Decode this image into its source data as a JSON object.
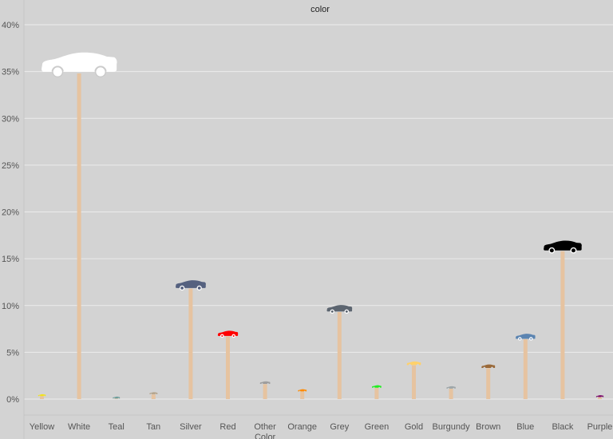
{
  "chart_data": {
    "type": "lollipop",
    "title": "color",
    "ylim": [
      0,
      40
    ],
    "y_ticks": [
      "0%",
      "5%",
      "10%",
      "15%",
      "20%",
      "25%",
      "30%",
      "35%",
      "40%"
    ],
    "y_tick_values": [
      0,
      5,
      10,
      15,
      20,
      25,
      30,
      35,
      40
    ],
    "grid": true,
    "categories": [
      "Yellow",
      "White",
      "Teal",
      "Tan",
      "Silver",
      "Red",
      "Other Color",
      "Orange",
      "Grey",
      "Green",
      "Gold",
      "Burgundy",
      "Brown",
      "Blue",
      "Black",
      "Purple"
    ],
    "values": [
      0.3,
      34.8,
      0.05,
      0.5,
      11.8,
      6.7,
      1.6,
      0.8,
      9.3,
      1.2,
      3.6,
      1.1,
      3.3,
      6.4,
      15.8,
      0.2
    ],
    "colors": [
      "#f2e21a",
      "#ffffff",
      "#6c9d9a",
      "#b3a38a",
      "#55617f",
      "#ff0000",
      "#9e9e9e",
      "#ff8a00",
      "#5c6570",
      "#22ee22",
      "#ffd16a",
      "#9ea6a9",
      "#9a6a3a",
      "#5b84b1",
      "#000000",
      "#7a0a6a"
    ],
    "stem_color": "#e6c3a0"
  }
}
